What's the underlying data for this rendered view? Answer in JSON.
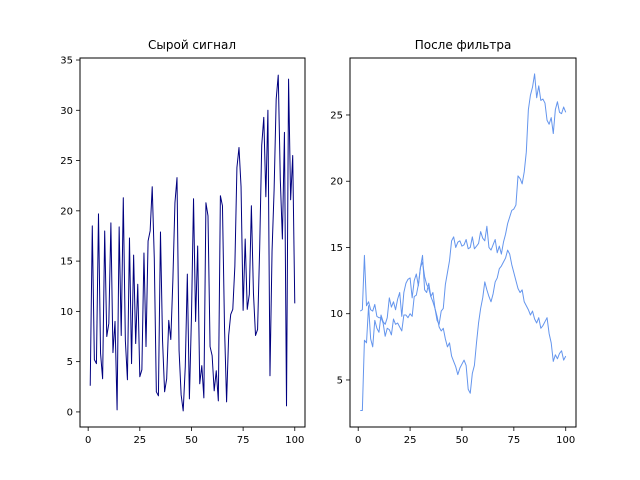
{
  "chart_data": [
    {
      "type": "line",
      "title": "Сырой сигнал",
      "xlabel": "",
      "ylabel": "",
      "xlim": [
        -3.95,
        104.95
      ],
      "ylim": [
        -1.5,
        35.2
      ],
      "xticks": [
        0,
        25,
        50,
        75,
        100
      ],
      "yticks": [
        0,
        5,
        10,
        15,
        20,
        25,
        30,
        35
      ],
      "grid": false,
      "color": "#00007f",
      "series": [
        {
          "x": [
            1,
            2,
            3,
            4,
            5,
            6,
            7,
            8,
            9,
            10,
            11,
            12,
            13,
            14,
            15,
            16,
            17,
            18,
            19,
            20,
            21,
            22,
            23,
            24,
            25,
            26,
            27,
            28,
            29,
            30,
            31,
            32,
            33,
            34,
            35,
            36,
            37,
            38,
            39,
            40,
            41,
            42,
            43,
            44,
            45,
            46,
            47,
            48,
            49,
            50,
            51,
            52,
            53,
            54,
            55,
            56,
            57,
            58,
            59,
            60,
            61,
            62,
            63,
            64,
            65,
            66,
            67,
            68,
            69,
            70,
            71,
            72,
            73,
            74,
            75,
            76,
            77,
            78,
            79,
            80,
            81,
            82,
            83,
            84,
            85,
            86,
            87,
            88,
            89,
            90,
            91,
            92,
            93,
            94,
            95,
            96,
            97,
            98,
            99,
            100
          ],
          "values": [
            2.6,
            18.5,
            5.2,
            4.8,
            19.7,
            5.8,
            3.3,
            18.0,
            7.5,
            8.8,
            18.8,
            5.9,
            9.0,
            0.2,
            18.4,
            7.6,
            21.3,
            7.1,
            3.2,
            17.3,
            4.8,
            15.6,
            6.8,
            12.7,
            3.5,
            4.2,
            15.8,
            6.5,
            17.0,
            18.0,
            22.4,
            15.3,
            2.0,
            1.6,
            17.9,
            7.1,
            2.0,
            3.3,
            9.1,
            7.2,
            13.1,
            20.8,
            23.3,
            6.1,
            1.7,
            0.1,
            4.5,
            13.7,
            1.3,
            9.5,
            21.2,
            9.0,
            16.5,
            2.8,
            4.6,
            1.4,
            20.8,
            19.5,
            6.5,
            5.6,
            2.1,
            4.1,
            1.1,
            21.5,
            20.5,
            8.4,
            1.0,
            7.6,
            9.7,
            10.2,
            14.5,
            24.3,
            26.3,
            22.4,
            10.1,
            17.2,
            10.2,
            11.7,
            20.5,
            11.8,
            7.6,
            8.2,
            16.2,
            26.5,
            29.3,
            21.4,
            30.0,
            3.6,
            16.0,
            22.1,
            31.1,
            33.5,
            23.1,
            17.2,
            27.8,
            0.6,
            33.1,
            21.1,
            25.5,
            10.8
          ]
        }
      ]
    },
    {
      "type": "line",
      "title": "После фильтра",
      "xlabel": "",
      "ylabel": "",
      "xlim": [
        -3.95,
        104.95
      ],
      "ylim": [
        1.45,
        29.3
      ],
      "xticks": [
        0,
        25,
        50,
        75,
        100
      ],
      "yticks": [
        5,
        10,
        15,
        20,
        25
      ],
      "grid": false,
      "color": "#6495ed",
      "series": [
        {
          "x": [
            1,
            2,
            3,
            4,
            5,
            6,
            7,
            8,
            9,
            10,
            11,
            12,
            13,
            14,
            15,
            16,
            17,
            18,
            19,
            20,
            21,
            22,
            23,
            24,
            25,
            26,
            27,
            28,
            29,
            30,
            31,
            32,
            33,
            34,
            35,
            36,
            37,
            38,
            39,
            40,
            41,
            42,
            43,
            44,
            45,
            46,
            47,
            48,
            49,
            50,
            51,
            52,
            53,
            54,
            55,
            56,
            57,
            58,
            59,
            60,
            61,
            62,
            63,
            64,
            65,
            66,
            67,
            68,
            69,
            70,
            71,
            72,
            73,
            74,
            75,
            76,
            77,
            78,
            79,
            80,
            81,
            82,
            83,
            84,
            85,
            86,
            87,
            88,
            89,
            90,
            91,
            92,
            93,
            94,
            95,
            96,
            97,
            98,
            99,
            100
          ],
          "values": [
            2.7,
            2.7,
            8.0,
            7.8,
            10.6,
            8.1,
            7.5,
            9.5,
            8.9,
            8.6,
            9.9,
            9.4,
            9.2,
            9.7,
            11.2,
            10.5,
            10.9,
            10.3,
            11.1,
            11.6,
            9.8,
            11.6,
            12.3,
            12.6,
            12.7,
            11.2,
            12.5,
            13.0,
            12.1,
            13.5,
            13.9,
            12.8,
            12.2,
            11.9,
            11.3,
            10.9,
            10.4,
            9.8,
            9.0,
            8.7,
            8.9,
            8.1,
            7.5,
            7.8,
            6.8,
            6.4,
            6.0,
            5.4,
            5.9,
            6.2,
            6.5,
            6.1,
            4.3,
            4.0,
            5.5,
            6.1,
            7.8,
            9.3,
            10.4,
            11.2,
            12.4,
            11.8,
            11.3,
            10.9,
            11.5,
            12.4,
            12.7,
            13.4,
            13.6,
            13.9,
            14.2,
            14.8,
            14.5,
            13.7,
            13.1,
            12.5,
            11.9,
            11.6,
            11.8,
            10.9,
            10.6,
            10.3,
            9.9,
            10.2,
            9.6,
            9.3,
            9.7,
            8.9,
            9.1,
            9.4,
            9.7,
            8.5,
            7.8,
            6.4,
            6.9,
            6.6,
            7.0,
            7.2,
            6.5,
            6.8
          ]
        },
        {
          "x": [
            1,
            2,
            3,
            4,
            5,
            6,
            7,
            8,
            9,
            10,
            11,
            12,
            13,
            14,
            15,
            16,
            17,
            18,
            19,
            20,
            21,
            22,
            23,
            24,
            25,
            26,
            27,
            28,
            29,
            30,
            31,
            32,
            33,
            34,
            35,
            36,
            37,
            38,
            39,
            40,
            41,
            42,
            43,
            44,
            45,
            46,
            47,
            48,
            49,
            50,
            51,
            52,
            53,
            54,
            55,
            56,
            57,
            58,
            59,
            60,
            61,
            62,
            63,
            64,
            65,
            66,
            67,
            68,
            69,
            70,
            71,
            72,
            73,
            74,
            75,
            76,
            77,
            78,
            79,
            80,
            81,
            82,
            83,
            84,
            85,
            86,
            87,
            88,
            89,
            90,
            91,
            92,
            93,
            94,
            95,
            96,
            97,
            98,
            99,
            100
          ],
          "values": [
            10.2,
            10.3,
            14.4,
            10.6,
            10.9,
            10.3,
            10.2,
            10.7,
            9.8,
            9.7,
            9.7,
            9.3,
            8.3,
            8.9,
            8.8,
            8.4,
            9.6,
            9.2,
            9.3,
            9.0,
            8.7,
            9.9,
            9.9,
            9.7,
            10.0,
            9.8,
            11.3,
            11.4,
            12.2,
            13.5,
            14.4,
            11.8,
            11.6,
            12.3,
            11.3,
            11.6,
            10.4,
            9.5,
            9.2,
            10.2,
            10.4,
            12.2,
            13.1,
            14.0,
            15.5,
            15.8,
            15.0,
            15.4,
            15.5,
            15.1,
            15.2,
            15.6,
            14.9,
            15.0,
            15.8,
            14.9,
            15.1,
            15.3,
            16.2,
            15.7,
            15.5,
            16.6,
            15.0,
            14.8,
            15.2,
            15.6,
            14.6,
            15.1,
            14.5,
            15.4,
            16.0,
            16.8,
            17.3,
            17.8,
            17.9,
            18.2,
            20.4,
            20.2,
            19.8,
            20.7,
            22.2,
            25.4,
            26.5,
            27.1,
            28.1,
            26.3,
            27.2,
            26.1,
            26.2,
            25.9,
            24.6,
            24.3,
            24.8,
            23.6,
            25.4,
            26.0,
            25.2,
            25.1,
            25.6,
            25.2
          ]
        }
      ]
    }
  ]
}
